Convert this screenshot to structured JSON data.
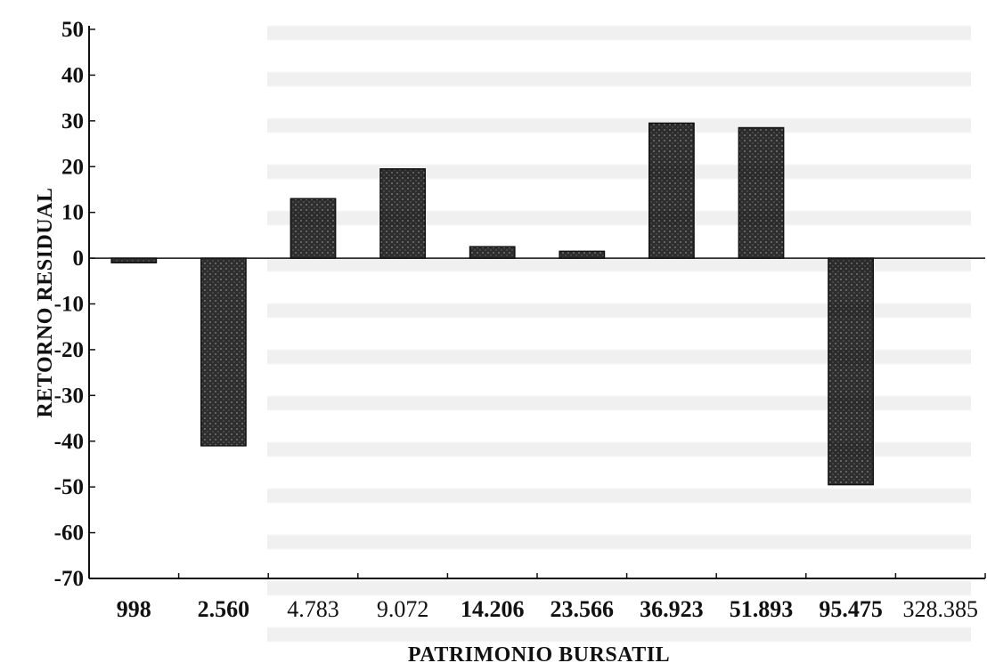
{
  "chart_data": {
    "type": "bar",
    "xlabel": "PATRIMONIO BURSATIL",
    "ylabel": "RETORNO RESIDUAL",
    "ylim": [
      -70,
      50
    ],
    "yticks": [
      50,
      40,
      30,
      20,
      10,
      0,
      -10,
      -20,
      -30,
      -40,
      -50,
      -60,
      -70
    ],
    "categories": [
      "998",
      "2.560",
      "4.783",
      "9.072",
      "14.206",
      "23.566",
      "36.923",
      "51.893",
      "95.475",
      "328.385"
    ],
    "values": [
      -1,
      -41,
      13,
      19.5,
      2.5,
      1.5,
      29.5,
      28.5,
      -49.5,
      0
    ],
    "bold_categories": [
      "998",
      "2.560",
      "14.206",
      "23.566",
      "36.923",
      "51.893",
      "95.475"
    ],
    "grid": false,
    "bar_color": "#2b2b2b"
  }
}
